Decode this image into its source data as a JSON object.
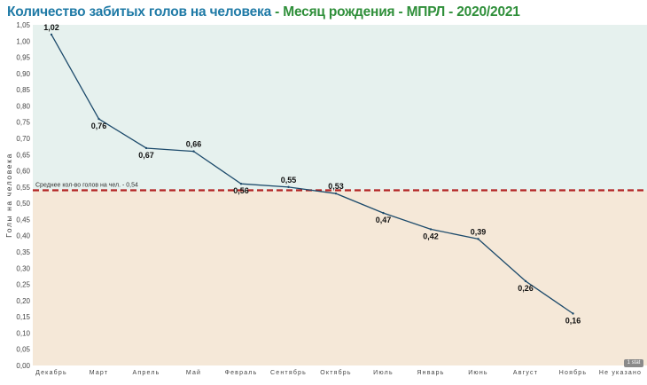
{
  "title": {
    "main": "Количество забитых голов на человека",
    "sep1": " - ",
    "part2": "Месяц рождения",
    "sep2": " - ",
    "part3": "МПРЛ - 2020/2021"
  },
  "badge": "1 stat",
  "colors": {
    "band_above": "#e6f1ee",
    "band_below": "#f5e8d8",
    "line": "#1c4a6b",
    "reference": "#b22222",
    "title_main": "#1f7aa6",
    "title_sub": "#2f8f3a"
  },
  "chart_data": {
    "type": "line",
    "ylabel": "Голы на человека",
    "xlabel": "",
    "ylim": [
      0,
      1.05
    ],
    "yticks": [
      "0,00",
      "0,05",
      "0,10",
      "0,15",
      "0,20",
      "0,25",
      "0,30",
      "0,35",
      "0,40",
      "0,45",
      "0,50",
      "0,55",
      "0,60",
      "0,65",
      "0,70",
      "0,75",
      "0,80",
      "0,85",
      "0,90",
      "0,95",
      "1,00",
      "1,05"
    ],
    "categories": [
      "Декабрь",
      "Март",
      "Апрель",
      "Май",
      "Февраль",
      "Сентябрь",
      "Октябрь",
      "Июль",
      "Январь",
      "Июнь",
      "Август",
      "Ноябрь",
      "Не указано"
    ],
    "values": [
      1.02,
      0.76,
      0.67,
      0.66,
      0.56,
      0.55,
      0.53,
      0.47,
      0.42,
      0.39,
      0.26,
      0.16,
      null
    ],
    "labels": [
      "1,02",
      "0,76",
      "0,67",
      "0,66",
      "0,56",
      "0,55",
      "0,53",
      "0,47",
      "0,42",
      "0,39",
      "0,26",
      "0,16",
      ""
    ],
    "reference_line": {
      "value": 0.54,
      "label": "Среднее кол-во голов на чел. - 0,54"
    },
    "grid": false,
    "legend": "none"
  }
}
